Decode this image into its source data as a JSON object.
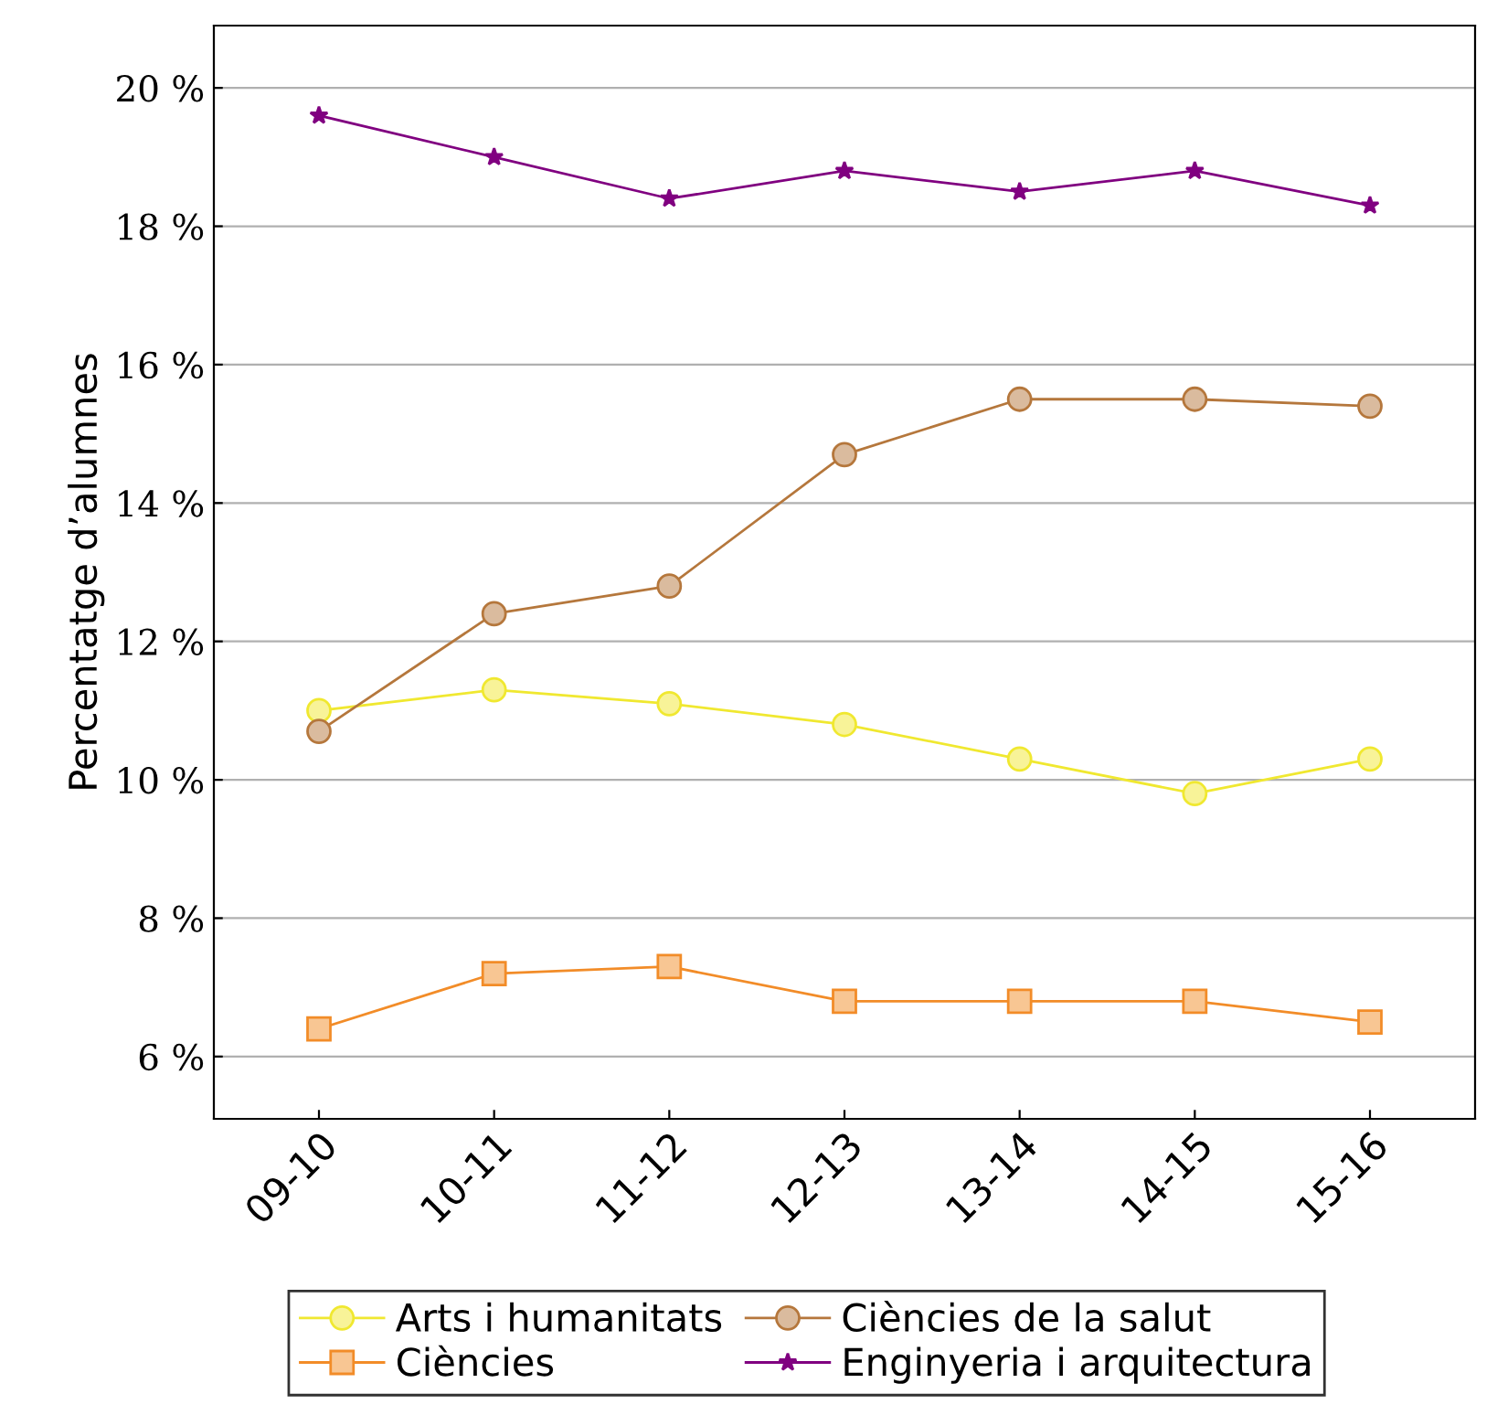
{
  "chart_data": {
    "type": "line",
    "ylabel": "Percentatge d’alumnes",
    "categories": [
      "09-10",
      "10-11",
      "11-12",
      "12-13",
      "13-14",
      "14-15",
      "15-16"
    ],
    "series": [
      {
        "name": "Arts i humanitats",
        "color": "#f0e830",
        "marker": "circle",
        "values": [
          11.0,
          11.3,
          11.1,
          10.8,
          10.3,
          9.8,
          10.3
        ]
      },
      {
        "name": "Ciències",
        "color": "#f28c28",
        "marker": "square",
        "values": [
          6.4,
          7.2,
          7.3,
          6.8,
          6.8,
          6.8,
          6.5
        ]
      },
      {
        "name": "Ciències de la salut",
        "color": "#b5773c",
        "marker": "circle",
        "values": [
          10.7,
          12.4,
          12.8,
          14.7,
          15.5,
          15.5,
          15.4
        ]
      },
      {
        "name": "Enginyeria i arquitectura",
        "color": "#800080",
        "marker": "star",
        "values": [
          19.6,
          19.0,
          18.4,
          18.8,
          18.5,
          18.8,
          18.3
        ]
      }
    ],
    "ylim": [
      5.1,
      20.9
    ],
    "yticks": [
      {
        "value": 6,
        "label": "6 %"
      },
      {
        "value": 8,
        "label": "8 %"
      },
      {
        "value": 10,
        "label": "10 %"
      },
      {
        "value": 12,
        "label": "12 %"
      },
      {
        "value": 14,
        "label": "14 %"
      },
      {
        "value": 16,
        "label": "16 %"
      },
      {
        "value": 18,
        "label": "18 %"
      },
      {
        "value": 20,
        "label": "20 %"
      }
    ],
    "grid": "y",
    "legend": "bottom",
    "line_style": "solid"
  }
}
